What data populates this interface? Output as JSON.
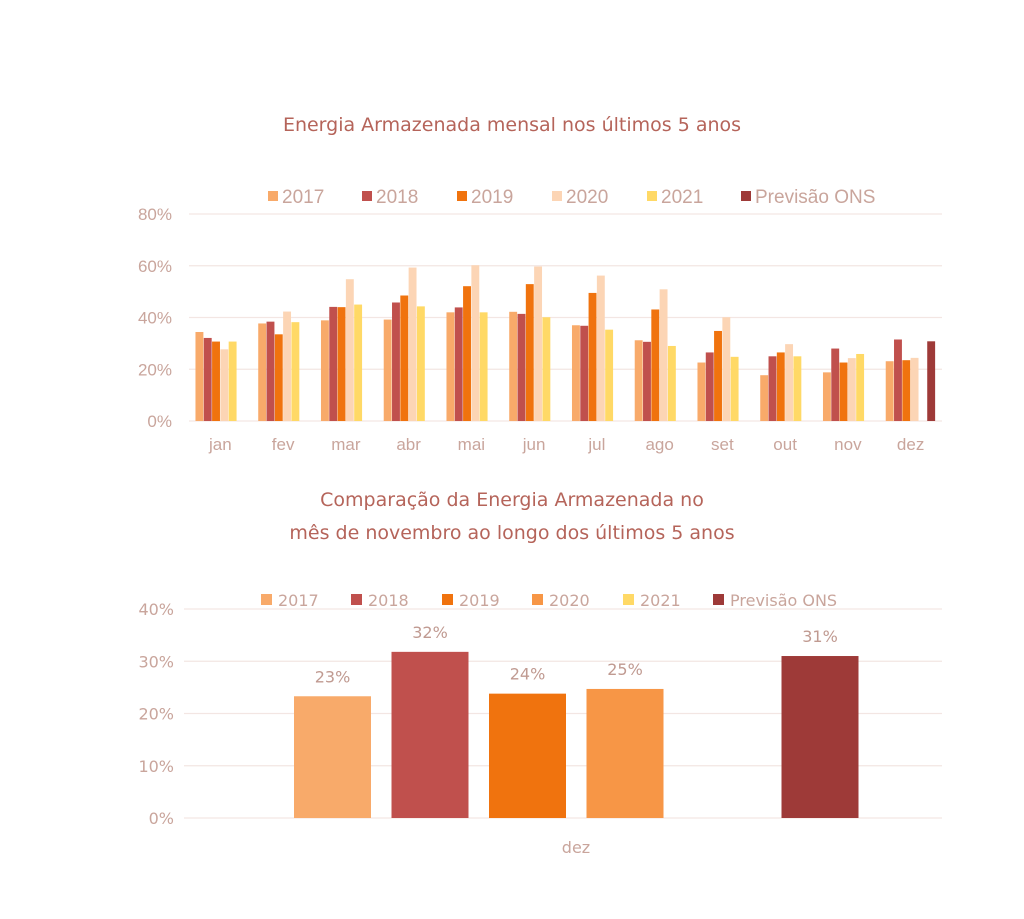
{
  "chart_data": [
    {
      "type": "bar",
      "title": "Energia Armazenada mensal nos últimos 5 anos",
      "xlabel": "",
      "ylabel": "",
      "ylim": [
        0,
        80
      ],
      "yticks": [
        "0%",
        "20%",
        "40%",
        "60%",
        "80%"
      ],
      "ytick_values": [
        0,
        20,
        40,
        60,
        80
      ],
      "grid": true,
      "legend_position": "top",
      "categories": [
        "jan",
        "fev",
        "mar",
        "abr",
        "mai",
        "jun",
        "jul",
        "ago",
        "set",
        "out",
        "nov",
        "dez"
      ],
      "series": [
        {
          "name": "2017",
          "color": "#F8AA6A",
          "values": [
            34.4,
            37.7,
            38.9,
            39.2,
            42.0,
            42.2,
            37.0,
            31.2,
            22.6,
            17.7,
            18.8,
            23.1
          ]
        },
        {
          "name": "2018",
          "color": "#C0504D",
          "values": [
            32.1,
            38.4,
            44.1,
            45.8,
            43.9,
            41.4,
            36.8,
            30.6,
            26.5,
            25.0,
            28.0,
            31.5
          ]
        },
        {
          "name": "2019",
          "color": "#F0730E",
          "values": [
            30.7,
            33.5,
            44.0,
            48.5,
            52.1,
            52.9,
            49.5,
            43.1,
            34.8,
            26.5,
            22.6,
            23.5
          ]
        },
        {
          "name": "2020",
          "color": "#FCD5B5",
          "values": [
            27.7,
            42.3,
            54.8,
            59.3,
            60.2,
            59.7,
            56.2,
            50.9,
            40.1,
            29.7,
            24.3,
            24.4
          ]
        },
        {
          "name": "2021",
          "color": "#FFD966",
          "values": [
            30.7,
            38.2,
            45.0,
            44.3,
            42.0,
            40.1,
            35.3,
            29.0,
            24.8,
            25.0,
            25.9,
            null
          ]
        },
        {
          "name": "Previsão ONS",
          "color": "#9E3A38",
          "values": [
            null,
            null,
            null,
            null,
            null,
            null,
            null,
            null,
            null,
            null,
            null,
            30.8
          ]
        }
      ]
    },
    {
      "type": "bar",
      "title": "Comparação da Energia Armazenada no\nmês de novembro ao longo dos últimos 5 anos",
      "title_lines": [
        "Comparação da Energia Armazenada no",
        "mês de novembro ao longo dos últimos 5 anos"
      ],
      "xlabel": "",
      "ylabel": "",
      "ylim": [
        0,
        40
      ],
      "yticks": [
        "0%",
        "10%",
        "20%",
        "30%",
        "40%"
      ],
      "ytick_values": [
        0,
        10,
        20,
        30,
        40
      ],
      "grid": true,
      "legend_position": "top",
      "categories": [
        "dez"
      ],
      "series": [
        {
          "name": "2017",
          "color": "#F8AA6A",
          "values": [
            23.3
          ],
          "label": "23%"
        },
        {
          "name": "2018",
          "color": "#C0504D",
          "values": [
            31.8
          ],
          "label": "32%"
        },
        {
          "name": "2019",
          "color": "#F0730E",
          "values": [
            23.8
          ],
          "label": "24%"
        },
        {
          "name": "2020",
          "color": "#F79646",
          "values": [
            24.7
          ],
          "label": "25%"
        },
        {
          "name": "2021",
          "color": "#FFD966",
          "values": [
            null
          ],
          "label": ""
        },
        {
          "name": "Previsão ONS",
          "color": "#9E3A38",
          "values": [
            31.0
          ],
          "label": "31%"
        }
      ]
    }
  ]
}
